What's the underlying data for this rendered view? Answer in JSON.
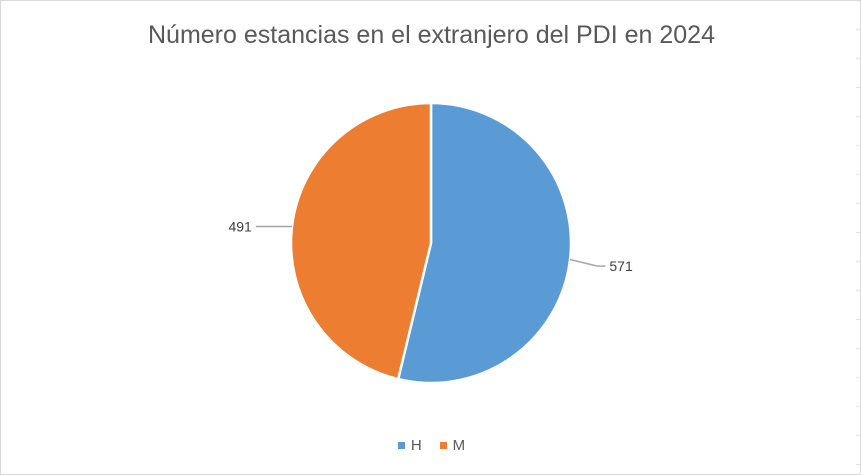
{
  "chart_data": {
    "type": "pie",
    "title": "Número estancias en el extranjero del PDI en 2024",
    "categories": [
      "H",
      "M"
    ],
    "values": [
      571,
      491
    ],
    "colors": [
      "#5b9bd5",
      "#ed7d31"
    ],
    "data_labels": [
      "571",
      "491"
    ],
    "legend_position": "bottom",
    "start_angle_deg": 0,
    "direction": "clockwise"
  }
}
